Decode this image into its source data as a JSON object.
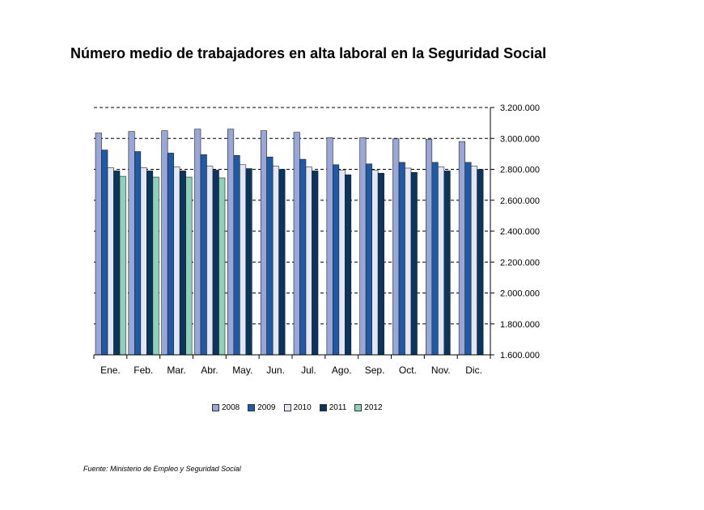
{
  "chart_data": {
    "type": "bar",
    "title": "Número medio de trabajadores en alta laboral en la Seguridad Social",
    "source": "Fuente: Ministerio de Empleo y Seguridad Social",
    "categories": [
      "Ene.",
      "Feb.",
      "Mar.",
      "Abr.",
      "May.",
      "Jun.",
      "Jul.",
      "Ago.",
      "Sep.",
      "Oct.",
      "Nov.",
      "Dic."
    ],
    "y_ticks": [
      "1.600.000",
      "1.800.000",
      "2.000.000",
      "2.200.000",
      "2.400.000",
      "2.600.000",
      "2.800.000",
      "3.000.000",
      "3.200.000"
    ],
    "ylim": [
      1600000,
      3200000
    ],
    "y_axis_position": "right",
    "grid": "dashed",
    "legend_position": "bottom",
    "series": [
      {
        "name": "2008",
        "color": "#98a6d8",
        "values": [
          3035000,
          3045000,
          3050000,
          3060000,
          3060000,
          3050000,
          3040000,
          3005000,
          3005000,
          2998000,
          2995000,
          2980000
        ]
      },
      {
        "name": "2009",
        "color": "#1f5aa6",
        "values": [
          2925000,
          2915000,
          2905000,
          2895000,
          2890000,
          2880000,
          2865000,
          2830000,
          2835000,
          2845000,
          2845000,
          2845000
        ]
      },
      {
        "name": "2010",
        "color": "#e3e7f3",
        "values": [
          2810000,
          2810000,
          2815000,
          2820000,
          2830000,
          2820000,
          2815000,
          2795000,
          2795000,
          2808000,
          2815000,
          2820000
        ]
      },
      {
        "name": "2011",
        "color": "#0a3560",
        "values": [
          2790000,
          2790000,
          2790000,
          2795000,
          2805000,
          2800000,
          2790000,
          2765000,
          2775000,
          2780000,
          2790000,
          2800000
        ]
      },
      {
        "name": "2012",
        "color": "#8fd0b8",
        "values": [
          2755000,
          2750000,
          2750000,
          2745000,
          null,
          null,
          null,
          null,
          null,
          null,
          null,
          null
        ]
      }
    ]
  }
}
